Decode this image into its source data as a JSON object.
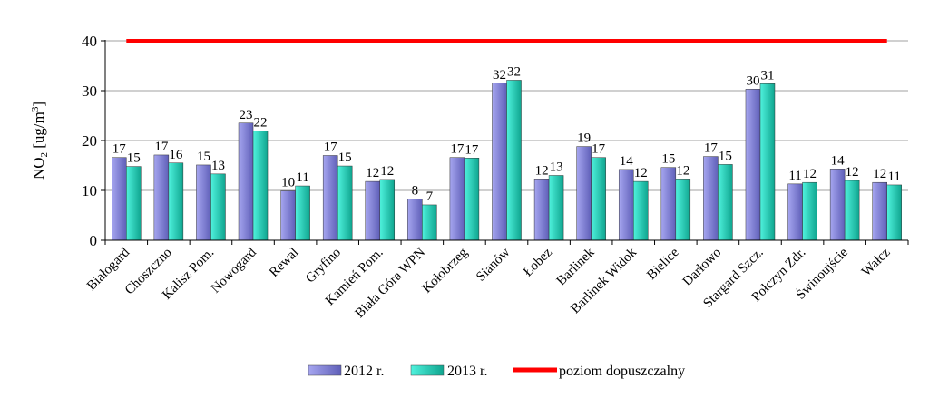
{
  "chart_data": {
    "type": "bar",
    "ylabel_main": "NO",
    "ylabel_sub": "2",
    "ylabel_rest": " [ug/m",
    "ylabel_sup": "3",
    "ylabel_end": "]",
    "ylim": [
      0,
      40
    ],
    "yticks": [
      "0",
      "10",
      "20",
      "30",
      "40"
    ],
    "categories": [
      "Białogard",
      "Choszczno",
      "Kalisz Pom.",
      "Nowogard",
      "Rewal",
      "Gryfino",
      "Kamień Pom.",
      "Biała Góra WPN",
      "Kołobrzeg",
      "Sianów",
      "Łobez",
      "Barlinek",
      "Barlinek Widok",
      "Bielice",
      "Darłowo",
      "Stargard Szcz.",
      "Połczyn Zdr.",
      "Świnoujście",
      "Wałcz"
    ],
    "series": [
      {
        "name": "2012 r.",
        "color": "#8f8fe0",
        "values": [
          16.6,
          17.1,
          15.1,
          23.5,
          9.9,
          17.0,
          11.8,
          8.3,
          16.6,
          31.5,
          12.3,
          18.8,
          14.2,
          14.6,
          16.8,
          30.3,
          11.3,
          14.3,
          11.6
        ],
        "labels": [
          "17",
          "17",
          "15",
          "23",
          "10",
          "17",
          "12",
          "8",
          "17",
          "32",
          "12",
          "19",
          "14",
          "15",
          "17",
          "30",
          "11",
          "14",
          "12"
        ]
      },
      {
        "name": "2013 r.",
        "color": "#2ee6cf",
        "values": [
          14.8,
          15.5,
          13.3,
          21.9,
          10.9,
          14.9,
          12.2,
          7.1,
          16.5,
          32.1,
          13.0,
          16.6,
          11.8,
          12.3,
          15.2,
          31.4,
          11.6,
          12.0,
          11.1
        ],
        "labels": [
          "15",
          "16",
          "13",
          "22",
          "11",
          "15",
          "12",
          "7",
          "17",
          "32",
          "13",
          "17",
          "12",
          "12",
          "15",
          "31",
          "12",
          "12",
          "11"
        ]
      }
    ],
    "limit_line": {
      "name": "poziom dopuszczalny",
      "value": 40,
      "color": "#ff0000"
    },
    "grid": true,
    "legend_position": "bottom"
  }
}
